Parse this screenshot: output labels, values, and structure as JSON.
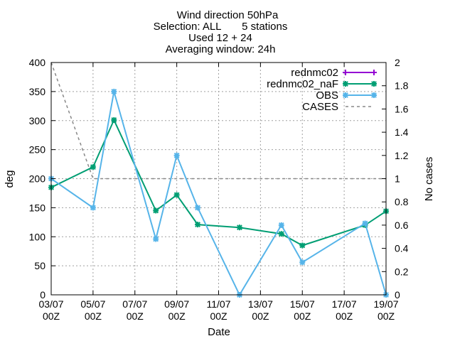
{
  "chart_data": {
    "type": "line",
    "title_lines": [
      "Wind direction 50hPa",
      "Selection: ALL       5 stations",
      "Used 12 + 24",
      "Averaging window: 24h"
    ],
    "xlabel": "Date",
    "ylabel": "deg",
    "y2label": "No cases",
    "xlim": [
      "2023-07-03",
      "2023-07-19"
    ],
    "ylim": [
      0,
      400
    ],
    "y2lim": [
      0,
      2
    ],
    "x_tick_labels": [
      {
        "date": "2023-07-03",
        "line1": "03/07",
        "line2": "00Z"
      },
      {
        "date": "2023-07-05",
        "line1": "05/07",
        "line2": "00Z"
      },
      {
        "date": "2023-07-07",
        "line1": "07/07",
        "line2": "00Z"
      },
      {
        "date": "2023-07-09",
        "line1": "09/07",
        "line2": "00Z"
      },
      {
        "date": "2023-07-11",
        "line1": "11/07",
        "line2": "00Z"
      },
      {
        "date": "2023-07-13",
        "line1": "13/07",
        "line2": "00Z"
      },
      {
        "date": "2023-07-15",
        "line1": "15/07",
        "line2": "00Z"
      },
      {
        "date": "2023-07-17",
        "line1": "17/07",
        "line2": "00Z"
      },
      {
        "date": "2023-07-19",
        "line1": "19/07",
        "line2": "00Z"
      }
    ],
    "y_ticks": [
      0,
      50,
      100,
      150,
      200,
      250,
      300,
      350,
      400
    ],
    "y2_ticks": [
      0,
      0.2,
      0.4,
      0.6,
      0.8,
      1,
      1.2,
      1.4,
      1.6,
      1.8,
      2
    ],
    "grid": true,
    "legend_position": "top-right",
    "series": [
      {
        "name": "rednmc02",
        "color": "#9400d3",
        "axis": "y",
        "dashed": false,
        "marker": "plus",
        "points": []
      },
      {
        "name": "rednmc02_naF",
        "color": "#009e73",
        "axis": "y",
        "dashed": false,
        "marker": "cross",
        "points": [
          [
            "2023-07-03",
            185
          ],
          [
            "2023-07-05",
            220
          ],
          [
            "2023-07-06",
            301
          ],
          [
            "2023-07-08",
            145
          ],
          [
            "2023-07-09",
            172
          ],
          [
            "2023-07-10",
            121
          ],
          [
            "2023-07-12",
            116
          ],
          [
            "2023-07-14",
            105
          ],
          [
            "2023-07-15",
            85
          ],
          [
            "2023-07-18",
            120
          ],
          [
            "2023-07-19",
            144
          ]
        ]
      },
      {
        "name": "OBS",
        "color": "#56b4e9",
        "axis": "y",
        "dashed": false,
        "marker": "star",
        "points": [
          [
            "2023-07-03",
            200
          ],
          [
            "2023-07-05",
            150
          ],
          [
            "2023-07-06",
            350
          ],
          [
            "2023-07-08",
            96
          ],
          [
            "2023-07-09",
            240
          ],
          [
            "2023-07-10",
            150
          ],
          [
            "2023-07-12",
            0
          ],
          [
            "2023-07-14",
            120
          ],
          [
            "2023-07-15",
            56
          ],
          [
            "2023-07-18",
            123
          ],
          [
            "2023-07-19",
            0
          ]
        ]
      },
      {
        "name": "CASES",
        "color": "#888888",
        "axis": "y2",
        "dashed": true,
        "marker": "none",
        "points": [
          [
            "2023-07-03",
            2
          ],
          [
            "2023-07-05",
            1
          ],
          [
            "2023-07-19",
            1
          ]
        ]
      }
    ]
  }
}
